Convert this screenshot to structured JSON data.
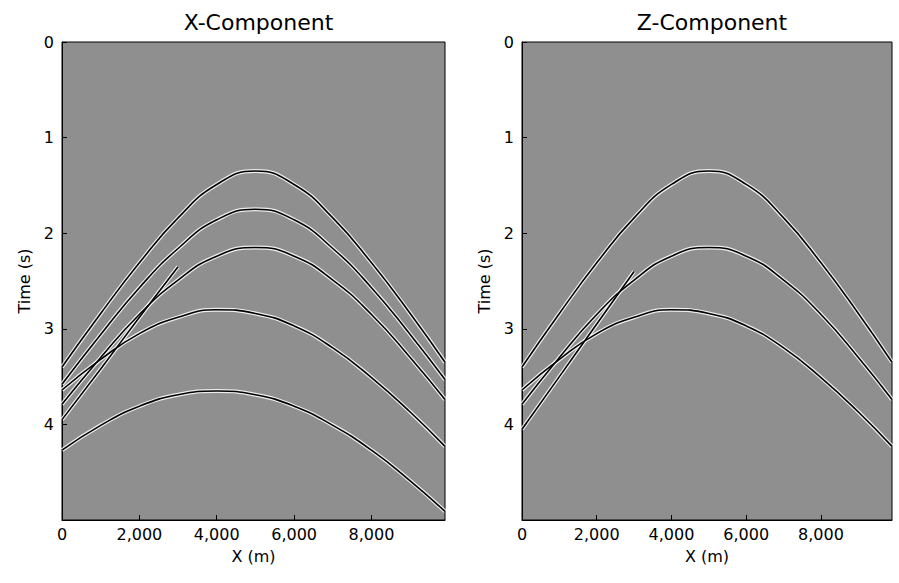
{
  "chart_data": [
    {
      "type": "line",
      "title": "X-Component",
      "x_label": "X (m)",
      "y_label": "Time (s)",
      "xlim": [
        0,
        9900
      ],
      "ylim": [
        0,
        5
      ],
      "xticks": [
        0,
        2000,
        4000,
        6000,
        8000
      ],
      "yticks": [
        0,
        1,
        2,
        3,
        4
      ],
      "grid": false,
      "x": [
        0,
        1000,
        2000,
        3000,
        4000,
        5000,
        6000,
        7000,
        8000,
        9000,
        9900
      ],
      "series": [
        {
          "color": "#000000",
          "values": [
            3.4,
            2.84,
            2.31,
            1.84,
            1.49,
            1.35,
            1.49,
            1.84,
            2.31,
            2.84,
            3.35
          ]
        },
        {
          "color": "#000000",
          "values": [
            3.58,
            3.06,
            2.57,
            2.16,
            1.86,
            1.75,
            1.86,
            2.16,
            2.57,
            3.06,
            3.53
          ]
        },
        {
          "color": "#000000",
          "values": [
            3.79,
            3.3,
            2.85,
            2.49,
            2.24,
            2.15,
            2.24,
            2.49,
            2.85,
            3.3,
            3.74
          ]
        },
        {
          "color": "#000000",
          "values": [
            3.64,
            3.32,
            3.05,
            2.88,
            2.8,
            2.84,
            2.97,
            3.2,
            3.51,
            3.87,
            4.23
          ]
        },
        {
          "color": "#000000",
          "values": [
            4.27,
            4.01,
            3.81,
            3.69,
            3.65,
            3.69,
            3.81,
            4.01,
            4.27,
            4.59,
            4.91
          ]
        },
        {
          "color": "#000000",
          "values": [
            3.95,
            3.42,
            2.88,
            2.35,
            null,
            null,
            null,
            null,
            null,
            null,
            null
          ]
        }
      ]
    },
    {
      "type": "line",
      "title": "Z-Component",
      "x_label": "X (m)",
      "y_label": "Time (s)",
      "xlim": [
        0,
        9900
      ],
      "ylim": [
        0,
        5
      ],
      "xticks": [
        0,
        2000,
        4000,
        6000,
        8000
      ],
      "yticks": [
        0,
        1,
        2,
        3,
        4
      ],
      "grid": false,
      "x": [
        0,
        1000,
        2000,
        3000,
        4000,
        5000,
        6000,
        7000,
        8000,
        9000,
        9900
      ],
      "series": [
        {
          "color": "#000000",
          "values": [
            3.4,
            2.84,
            2.31,
            1.84,
            1.49,
            1.35,
            1.49,
            1.84,
            2.31,
            2.84,
            3.35
          ]
        },
        {
          "color": "#000000",
          "values": [
            3.79,
            3.3,
            2.85,
            2.49,
            2.24,
            2.15,
            2.24,
            2.49,
            2.85,
            3.3,
            3.74
          ]
        },
        {
          "color": "#000000",
          "values": [
            3.64,
            3.32,
            3.05,
            2.88,
            2.8,
            2.84,
            2.97,
            3.2,
            3.51,
            3.87,
            4.23
          ]
        },
        {
          "color": "#000000",
          "values": [
            4.05,
            3.5,
            2.95,
            2.4,
            null,
            null,
            null,
            null,
            null,
            null,
            null
          ]
        }
      ]
    }
  ]
}
